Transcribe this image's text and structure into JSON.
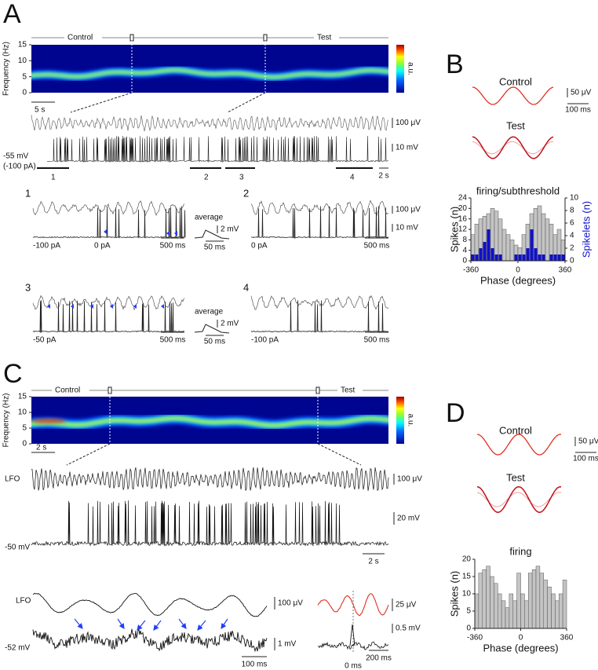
{
  "panel_a": {
    "label": "A",
    "control": "Control",
    "test": "Test",
    "y_label": "Frequency (Hz)",
    "ylim": [
      0,
      15
    ],
    "yticks": [
      0,
      5,
      10,
      15
    ],
    "colorbar_label": "a.u.",
    "time_scale": "5 s",
    "lfo_scale": "100 μV",
    "vm_scale": "10 mV",
    "vm_label": "-55 mV",
    "current_label": "(-100 pA)",
    "segments": [
      "1",
      "2",
      "3",
      "4"
    ],
    "segment_scale": "2 s",
    "insets": [
      {
        "label": "1",
        "currents": [
          "-100 pA",
          "0 pA"
        ],
        "time_scale": "500 ms",
        "average": "average",
        "average_amp": "2 mV",
        "average_time": "50 ms"
      },
      {
        "label": "2",
        "currents": [
          "0 pA"
        ],
        "time_scale": "500 ms",
        "lfo_scale": "100 μV",
        "vm_scale": "10 mV"
      },
      {
        "label": "3",
        "currents": [
          "-50 pA"
        ],
        "time_scale": "500 ms",
        "average": "average",
        "average_amp": "2 mV",
        "average_time": "50 ms"
      },
      {
        "label": "4",
        "currents": [
          "-100 pA"
        ],
        "time_scale": "500 ms"
      }
    ]
  },
  "panel_b": {
    "label": "B",
    "control": "Control",
    "amp_scale": "50 μV",
    "time_scale": "100 ms",
    "test": "Test",
    "histogram": {
      "title": "firing/subthreshold",
      "y_label": "Spikes (n)",
      "y2_label": "Spikelets (n)",
      "x_label": "Phase (degrees)",
      "bins": [
        -360,
        -330,
        -300,
        -270,
        -240,
        -210,
        -180,
        -150,
        -120,
        -90,
        -60,
        -30,
        0,
        30,
        60,
        90,
        120,
        150,
        180,
        210,
        240,
        270,
        300,
        330,
        360
      ],
      "spikes": [
        10,
        14,
        16,
        17,
        18,
        20,
        19,
        16,
        12,
        10,
        8,
        6,
        5,
        10,
        14,
        18,
        20,
        21,
        18,
        16,
        14,
        10,
        12,
        8
      ],
      "spikelets": [
        1,
        1,
        2,
        3,
        5,
        2,
        1,
        1,
        0,
        0,
        0,
        1,
        1,
        1,
        2,
        5,
        2,
        1,
        1,
        0,
        1,
        1,
        1,
        1
      ],
      "xlim": [
        -360,
        360
      ],
      "xticks": [
        -360,
        0,
        360
      ],
      "ylim": [
        0,
        24
      ],
      "yticks": [
        0,
        4,
        8,
        12,
        16,
        20,
        24
      ],
      "y2lim": [
        0,
        10
      ],
      "y2ticks": [
        0,
        2,
        4,
        6,
        8,
        10
      ]
    }
  },
  "panel_c": {
    "label": "C",
    "control": "Control",
    "test": "Test",
    "y_label": "Frequency (Hz)",
    "ylim": [
      0,
      15
    ],
    "yticks": [
      0,
      5,
      10,
      15
    ],
    "colorbar_label": "a.u.",
    "time_scale": "2 s",
    "lfo_label": "LFO",
    "lfo_scale": "100 μV",
    "vm_scale": "20 mV",
    "vm_label": "-50 mV",
    "trace_scale": "2 s",
    "detail": {
      "lfo_label": "LFO",
      "lfo_scale": "100 μV",
      "vm_label": "-52 mV",
      "vm_scale": "1 mV",
      "time_scale": "100 ms",
      "avg_lfo_scale": "25 μV",
      "avg_vm_scale": "0.5 mV",
      "avg_time_scale": "200 ms",
      "zero": "0 ms"
    }
  },
  "panel_d": {
    "label": "D",
    "control": "Control",
    "amp_scale": "50 μV",
    "time_scale": "100 ms",
    "test": "Test",
    "histogram": {
      "title": "firing",
      "y_label": "Spikes (n)",
      "x_label": "Phase (degrees)",
      "bins": [
        -360,
        -330,
        -300,
        -270,
        -240,
        -210,
        -180,
        -150,
        -120,
        -90,
        -60,
        -30,
        0,
        30,
        60,
        90,
        120,
        150,
        180,
        210,
        240,
        270,
        300,
        330,
        360
      ],
      "spikes": [
        10,
        16,
        17,
        18,
        15,
        13,
        10,
        8,
        6,
        10,
        8,
        16,
        10,
        8,
        16,
        17,
        18,
        16,
        14,
        12,
        10,
        8,
        10,
        14
      ],
      "xlim": [
        -360,
        360
      ],
      "xticks": [
        -360,
        0,
        360
      ],
      "ylim": [
        0,
        20
      ],
      "yticks": [
        0,
        5,
        10,
        15,
        20
      ]
    }
  }
}
